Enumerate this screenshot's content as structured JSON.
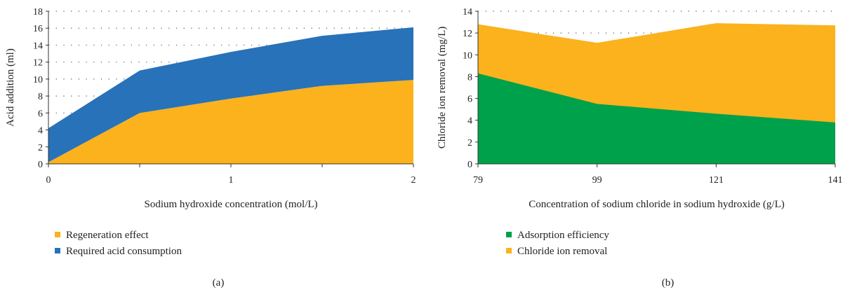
{
  "chart_data": [
    {
      "type": "area",
      "stacked": true,
      "x": [
        0,
        0.5,
        1,
        1.5,
        2
      ],
      "x_ticks": [
        "0",
        "1",
        "2"
      ],
      "x_tick_values": [
        0,
        1,
        2
      ],
      "xlabel": "Sodium hydroxide concentration (mol/L)",
      "ylabel": "Acid addition (ml)",
      "ylim": [
        0,
        18
      ],
      "y_ticks": [
        0,
        2,
        4,
        6,
        8,
        10,
        12,
        14,
        16,
        18
      ],
      "grid": "dotted horizontal",
      "legend_position": "bottom-left",
      "series": [
        {
          "name": "Regeneration effect",
          "color": "#FBB21C",
          "values": [
            0.2,
            6.0,
            7.7,
            9.2,
            9.9
          ]
        },
        {
          "name": "Required acid consumption",
          "color": "#2872B9",
          "values": [
            4.0,
            5.0,
            5.5,
            5.9,
            6.2
          ]
        }
      ],
      "caption": "(a)"
    },
    {
      "type": "area",
      "stacked": false,
      "x": [
        0,
        1,
        2,
        3
      ],
      "x_ticks": [
        "79",
        "99",
        "121",
        "141"
      ],
      "x_tick_values": [
        0,
        1,
        2,
        3
      ],
      "xlabel": "Concentration of sodium chloride in sodium hydroxide (g/L)",
      "ylabel": "Chloride ion removal (mg/L)",
      "ylim": [
        0,
        14
      ],
      "y_ticks": [
        0,
        2,
        4,
        6,
        8,
        10,
        12,
        14
      ],
      "grid": "dotted horizontal",
      "legend_position": "bottom-left",
      "series": [
        {
          "name": "Chloride ion removal",
          "color": "#FBB21C",
          "values": [
            12.8,
            11.1,
            12.9,
            12.7
          ]
        },
        {
          "name": "Adsorption efficiency",
          "color": "#00A14B",
          "values": [
            8.3,
            5.5,
            4.6,
            3.8
          ]
        }
      ],
      "legend_order": [
        "Adsorption efficiency",
        "Chloride ion removal"
      ],
      "caption": "(b)"
    }
  ]
}
